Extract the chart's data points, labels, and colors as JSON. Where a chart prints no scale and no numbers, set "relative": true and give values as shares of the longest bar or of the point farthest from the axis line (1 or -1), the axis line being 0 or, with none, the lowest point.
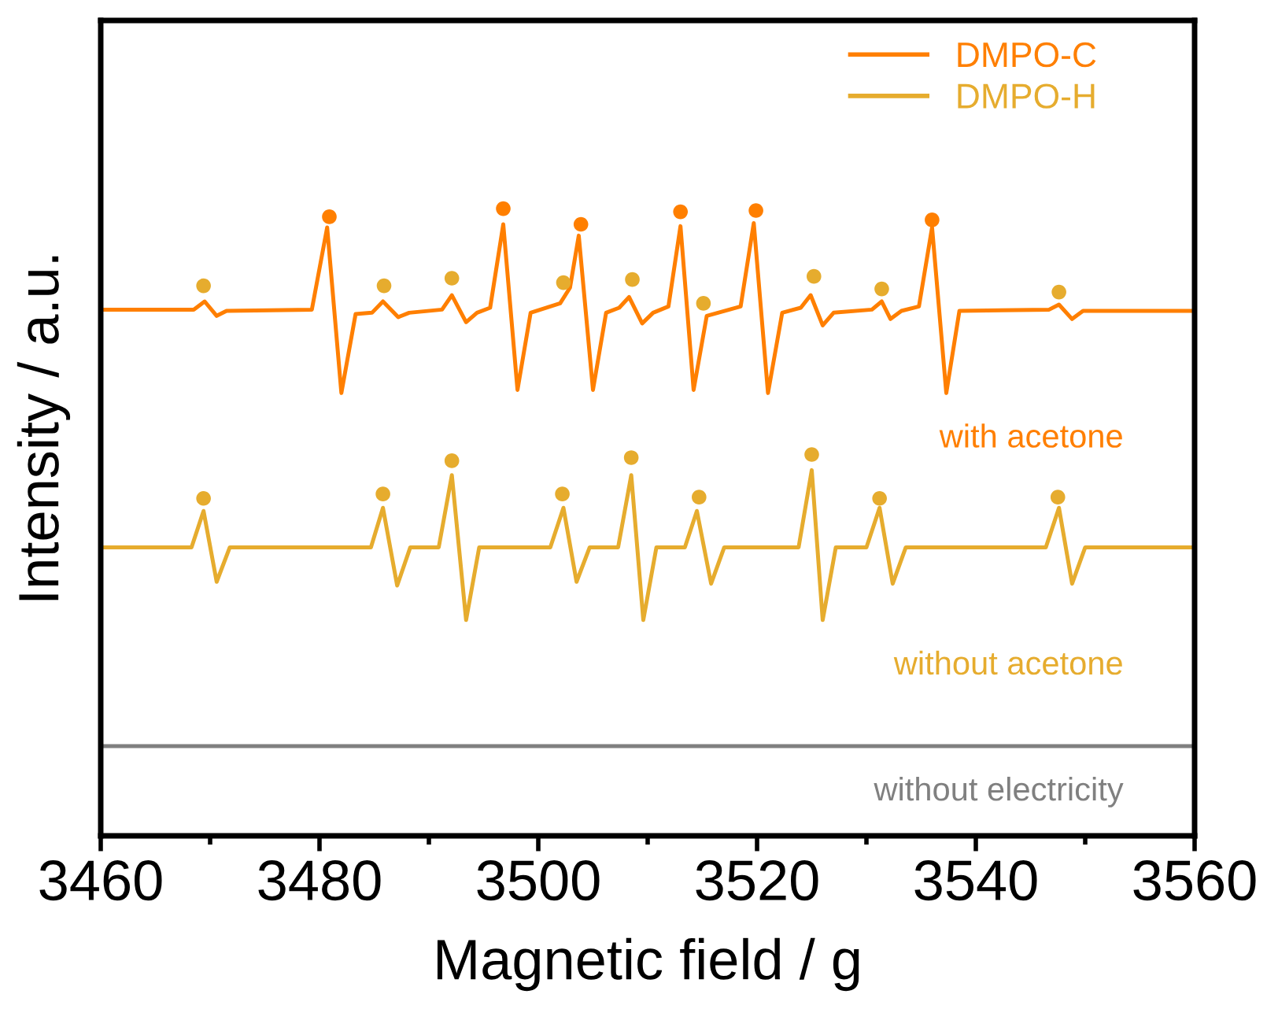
{
  "chart_data": {
    "type": "line",
    "relative": true,
    "xlabel": "Magnetic field / g",
    "ylabel": "Intensity / a.u.",
    "xlim": [
      3460,
      3560
    ],
    "xticks": [
      3460,
      3480,
      3500,
      3520,
      3540,
      3560
    ],
    "tick_labels": "x",
    "grid": false,
    "legend": "top right",
    "series": [
      {
        "color": "#ff7f00",
        "x": [
          3460,
          3468.5,
          3469.5,
          3470.6,
          3471.5,
          3479.3,
          3480.7,
          3482.0,
          3483.3,
          3484.8,
          3485.8,
          3487.2,
          3488.2,
          3491.2,
          3492.1,
          3493.4,
          3494.4,
          3495.6,
          3496.8,
          3498.1,
          3499.3,
          3502.0,
          3502.9,
          3503.7,
          3505.0,
          3506.2,
          3507.4,
          3508.3,
          3509.5,
          3510.5,
          3511.9,
          3513.0,
          3514.2,
          3515.4,
          3518.5,
          3519.7,
          3521.0,
          3522.3,
          3524.0,
          3524.9,
          3526.0,
          3527.0,
          3530.5,
          3531.4,
          3532.2,
          3533.2,
          3534.8,
          3536.0,
          3537.3,
          3538.5,
          3546.7,
          3547.6,
          3548.8,
          3549.8,
          3560
        ],
        "values": [
          0.839,
          0.839,
          0.852,
          0.829,
          0.837,
          0.839,
          0.97,
          0.706,
          0.832,
          0.834,
          0.852,
          0.827,
          0.834,
          0.839,
          0.862,
          0.819,
          0.834,
          0.842,
          0.975,
          0.711,
          0.834,
          0.849,
          0.874,
          0.957,
          0.711,
          0.834,
          0.842,
          0.859,
          0.817,
          0.834,
          0.844,
          0.972,
          0.711,
          0.829,
          0.844,
          0.977,
          0.706,
          0.834,
          0.842,
          0.862,
          0.814,
          0.834,
          0.839,
          0.852,
          0.824,
          0.837,
          0.844,
          0.97,
          0.706,
          0.837,
          0.839,
          0.847,
          0.824,
          0.837,
          0.837
        ]
      },
      {
        "color": "#e6ac2e",
        "x": [
          3460,
          3468.3,
          3469.4,
          3470.6,
          3471.8,
          3484.7,
          3485.8,
          3487.1,
          3488.3,
          3490.9,
          3492.1,
          3493.4,
          3494.6,
          3501.1,
          3502.3,
          3503.5,
          3504.7,
          3507.3,
          3508.5,
          3509.6,
          3510.8,
          3513.4,
          3514.5,
          3515.8,
          3517.0,
          3523.8,
          3525.0,
          3526.0,
          3527.2,
          3530.0,
          3531.2,
          3532.4,
          3533.6,
          3546.4,
          3547.6,
          3548.8,
          3550.0,
          3560
        ],
        "values": [
          0.46,
          0.46,
          0.518,
          0.405,
          0.46,
          0.46,
          0.523,
          0.399,
          0.46,
          0.46,
          0.575,
          0.344,
          0.46,
          0.46,
          0.523,
          0.405,
          0.46,
          0.46,
          0.575,
          0.344,
          0.46,
          0.46,
          0.518,
          0.402,
          0.46,
          0.46,
          0.583,
          0.344,
          0.46,
          0.46,
          0.523,
          0.402,
          0.46,
          0.46,
          0.523,
          0.402,
          0.46,
          0.46
        ]
      },
      {
        "color": "#808080",
        "x": [
          3460,
          3560
        ],
        "values": [
          0.143,
          0.143
        ]
      },
      {
        "type": "scatter",
        "name": "DMPO-C",
        "color": "#ff7f00",
        "marker": "circle",
        "x": [
          3480.9,
          3496.8,
          3503.9,
          3513.0,
          3519.9,
          3536.0
        ],
        "values": [
          0.987,
          1.0,
          0.975,
          0.995,
          0.997,
          0.982
        ]
      },
      {
        "type": "scatter",
        "name": "DMPO-H",
        "color": "#e6ac2e",
        "marker": "circle",
        "x": [
          3469.4,
          3485.9,
          3492.1,
          3502.3,
          3508.6,
          3515.1,
          3525.2,
          3531.4,
          3547.6,
          3469.4,
          3485.8,
          3492.1,
          3502.2,
          3508.5,
          3514.7,
          3525.0,
          3531.2,
          3547.5
        ],
        "values": [
          0.877,
          0.877,
          0.889,
          0.882,
          0.887,
          0.849,
          0.892,
          0.872,
          0.867,
          0.538,
          0.545,
          0.598,
          0.545,
          0.603,
          0.54,
          0.608,
          0.538,
          0.54
        ]
      }
    ],
    "annotations": [
      "with acetone",
      "without acetone",
      "without electricity"
    ]
  }
}
